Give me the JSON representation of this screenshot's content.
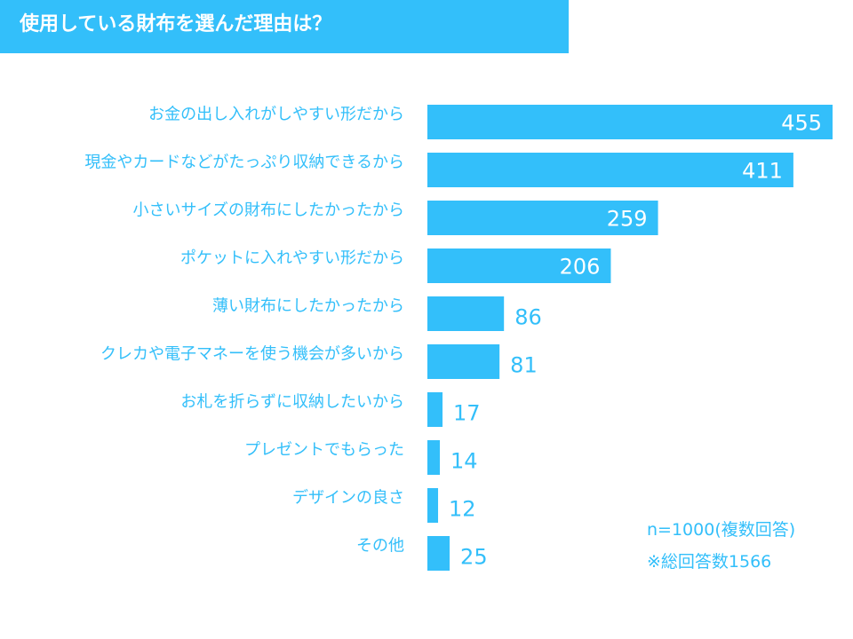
{
  "title": "使用している財布を選んだ理由は？",
  "notes": {
    "sample": "n=1000(複数回答)",
    "total": "※総回答数1566"
  },
  "colors": {
    "accent": "#33bffa",
    "label_text": "#33bffa",
    "bar_value_text": "#ffffff"
  },
  "chart_data": {
    "type": "bar",
    "orientation": "horizontal",
    "title": "使用している財布を選んだ理由は？",
    "categories": [
      "お金の出し入れがしやすい形だから",
      "現金やカードなどがたっぷり収納できるから",
      "小さいサイズの財布にしたかったから",
      "ポケットに入れやすい形だから",
      "薄い財布にしたかったから",
      "クレカや電子マネーを使う機会が多いから",
      "お札を折らずに収納したいから",
      "プレゼントでもらった",
      "デザインの良さ",
      "その他"
    ],
    "values": [
      455,
      411,
      259,
      206,
      86,
      81,
      17,
      14,
      12,
      25
    ],
    "xlim": [
      0,
      455
    ],
    "grid": false,
    "legend": "none"
  }
}
